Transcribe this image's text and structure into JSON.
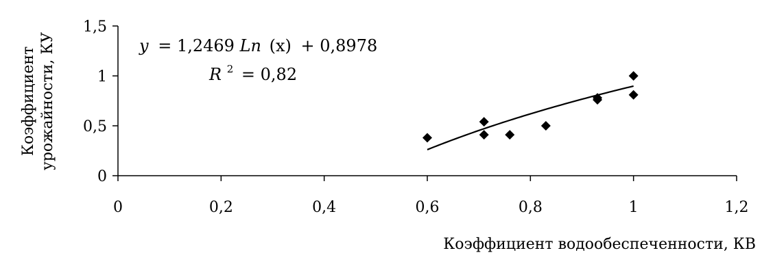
{
  "chart_data": {
    "type": "scatter",
    "xlabel": "Коэффициент водообеспеченности, КВ",
    "ylabel_lines": [
      "Коэффициент",
      "урожайности, КУ"
    ],
    "xlim": [
      0,
      1.2
    ],
    "ylim": [
      0,
      1.5
    ],
    "x_ticks": [
      0,
      0.2,
      0.4,
      0.6,
      0.8,
      1.0,
      1.2
    ],
    "y_ticks": [
      0,
      0.5,
      1.0,
      1.5
    ],
    "x_tick_labels": [
      "0",
      "0,2",
      "0,4",
      "0,6",
      "0,8",
      "1",
      "1,2"
    ],
    "y_tick_labels": [
      "0",
      "0,5",
      "1",
      "1,5"
    ],
    "grid": false,
    "legend": "none",
    "marker": "diamond",
    "points": [
      {
        "x": 0.6,
        "y": 0.38
      },
      {
        "x": 0.71,
        "y": 0.54
      },
      {
        "x": 0.71,
        "y": 0.41
      },
      {
        "x": 0.76,
        "y": 0.41
      },
      {
        "x": 0.83,
        "y": 0.5
      },
      {
        "x": 0.93,
        "y": 0.78
      },
      {
        "x": 0.93,
        "y": 0.76
      },
      {
        "x": 1.0,
        "y": 1.0
      },
      {
        "x": 1.0,
        "y": 0.81
      }
    ],
    "trendline": {
      "type": "logarithmic",
      "a": 1.2469,
      "b": 0.8978,
      "x_range": [
        0.6,
        1.0
      ]
    },
    "annotations": {
      "equation": {
        "y": "y",
        "eq": "= 1,2469",
        "ln": "Ln",
        "x": "(x)",
        "tail": "+ 0,8978"
      },
      "r2": {
        "r": "R",
        "exp": "2",
        "value": "= 0,82"
      }
    },
    "colors": {
      "axis": "#000000",
      "marker": "#000000",
      "line": "#000000"
    }
  }
}
